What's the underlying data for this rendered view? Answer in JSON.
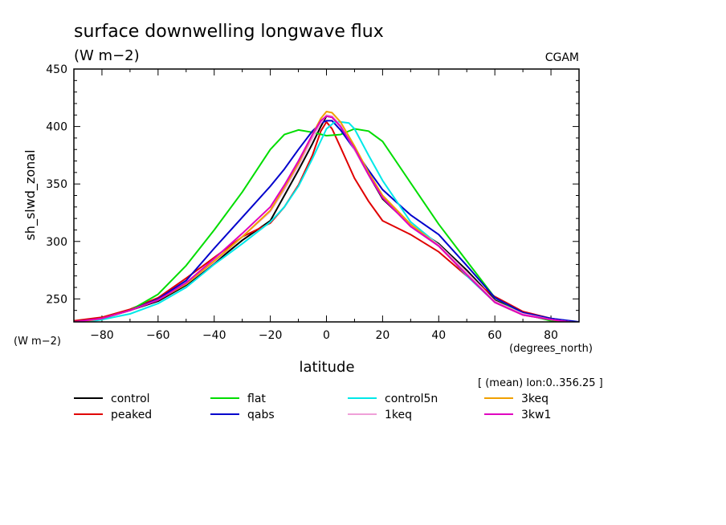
{
  "chart_data": {
    "type": "line",
    "title": "surface downwelling longwave flux",
    "subtitle": "(W m−2)",
    "source_label": "CGAM",
    "ylabel": "sh_slwd_zonal",
    "yunits_label": "(W m−2)",
    "xlabel": "latitude",
    "xunits_label": "(degrees_north)",
    "note": "[ (mean) lon:0..356.25 ]",
    "xlim": [
      -90,
      90
    ],
    "ylim": [
      230,
      450
    ],
    "xticks": [
      -80,
      -60,
      -40,
      -20,
      0,
      20,
      40,
      60,
      80
    ],
    "yticks": [
      250,
      300,
      350,
      400,
      450
    ],
    "grid": false,
    "legend_position": "bottom",
    "series": [
      {
        "name": "control",
        "color": "#000000",
        "x": [
          -90,
          -80,
          -70,
          -60,
          -50,
          -40,
          -30,
          -20,
          -15,
          -10,
          -5,
          -2,
          0,
          2,
          5,
          10,
          15,
          20,
          30,
          40,
          50,
          60,
          70,
          80,
          90
        ],
        "y": [
          229,
          233,
          240,
          248,
          262,
          281,
          301,
          318,
          340,
          362,
          385,
          400,
          409,
          408,
          400,
          380,
          358,
          337,
          314,
          298,
          275,
          249,
          237,
          233,
          229
        ]
      },
      {
        "name": "peaked",
        "color": "#e00000",
        "x": [
          -90,
          -80,
          -70,
          -60,
          -50,
          -40,
          -30,
          -20,
          -15,
          -10,
          -5,
          -2,
          0,
          2,
          5,
          10,
          15,
          20,
          30,
          40,
          50,
          60,
          70,
          80,
          90
        ],
        "y": [
          231,
          234,
          241,
          251,
          268,
          286,
          304,
          316,
          330,
          349,
          375,
          396,
          404,
          398,
          382,
          355,
          335,
          318,
          306,
          291,
          270,
          252,
          239,
          233,
          228
        ]
      },
      {
        "name": "flat",
        "color": "#00dd00",
        "x": [
          -90,
          -80,
          -70,
          -60,
          -50,
          -40,
          -30,
          -20,
          -15,
          -10,
          -5,
          0,
          5,
          10,
          15,
          20,
          30,
          40,
          50,
          60,
          70,
          80,
          90
        ],
        "y": [
          229,
          233,
          240,
          254,
          279,
          310,
          343,
          380,
          393,
          397,
          395,
          392,
          393,
          398,
          396,
          387,
          351,
          315,
          283,
          251,
          237,
          231,
          227
        ]
      },
      {
        "name": "qabs",
        "color": "#0000cc",
        "x": [
          -90,
          -80,
          -70,
          -60,
          -50,
          -40,
          -30,
          -20,
          -15,
          -10,
          -5,
          -2,
          0,
          2,
          5,
          10,
          15,
          20,
          30,
          40,
          50,
          60,
          70,
          80,
          90
        ],
        "y": [
          230,
          233,
          240,
          250,
          266,
          294,
          321,
          348,
          363,
          380,
          396,
          403,
          405,
          405,
          397,
          380,
          362,
          345,
          323,
          306,
          279,
          251,
          238,
          233,
          230
        ]
      },
      {
        "name": "control5n",
        "color": "#00e8e8",
        "x": [
          -90,
          -80,
          -70,
          -60,
          -50,
          -40,
          -30,
          -20,
          -15,
          -10,
          -5,
          0,
          3,
          5,
          8,
          10,
          15,
          20,
          30,
          40,
          50,
          60,
          70,
          80,
          90
        ],
        "y": [
          228,
          232,
          237,
          246,
          260,
          280,
          298,
          317,
          330,
          348,
          372,
          398,
          404,
          404,
          403,
          398,
          375,
          353,
          317,
          297,
          270,
          247,
          236,
          232,
          229
        ]
      },
      {
        "name": "1keq",
        "color": "#f0a0d8",
        "x": [
          -90,
          -80,
          -70,
          -60,
          -50,
          -40,
          -30,
          -20,
          -15,
          -10,
          -5,
          -2,
          0,
          2,
          5,
          10,
          15,
          20,
          30,
          40,
          50,
          60,
          70,
          80,
          90
        ],
        "y": [
          229,
          233,
          240,
          249,
          263,
          282,
          304,
          326,
          345,
          366,
          390,
          403,
          410,
          409,
          401,
          380,
          358,
          339,
          314,
          297,
          273,
          248,
          237,
          232,
          229
        ]
      },
      {
        "name": "3keq",
        "color": "#f0a000",
        "x": [
          -90,
          -80,
          -70,
          -60,
          -50,
          -40,
          -30,
          -20,
          -15,
          -10,
          -5,
          -2,
          0,
          2,
          5,
          10,
          15,
          20,
          30,
          40,
          50,
          60,
          70,
          80,
          90
        ],
        "y": [
          229,
          233,
          240,
          249,
          263,
          283,
          304,
          327,
          347,
          368,
          393,
          407,
          413,
          412,
          404,
          383,
          360,
          340,
          315,
          296,
          271,
          247,
          236,
          232,
          228
        ]
      },
      {
        "name": "3kw1",
        "color": "#e000c0",
        "x": [
          -90,
          -80,
          -70,
          -60,
          -50,
          -40,
          -30,
          -20,
          -15,
          -10,
          -5,
          -2,
          0,
          2,
          5,
          10,
          15,
          20,
          30,
          40,
          50,
          60,
          70,
          80,
          90
        ],
        "y": [
          230,
          233,
          240,
          249,
          264,
          285,
          307,
          330,
          349,
          370,
          393,
          405,
          409,
          408,
          400,
          381,
          358,
          338,
          313,
          296,
          271,
          247,
          236,
          232,
          229
        ]
      }
    ]
  }
}
